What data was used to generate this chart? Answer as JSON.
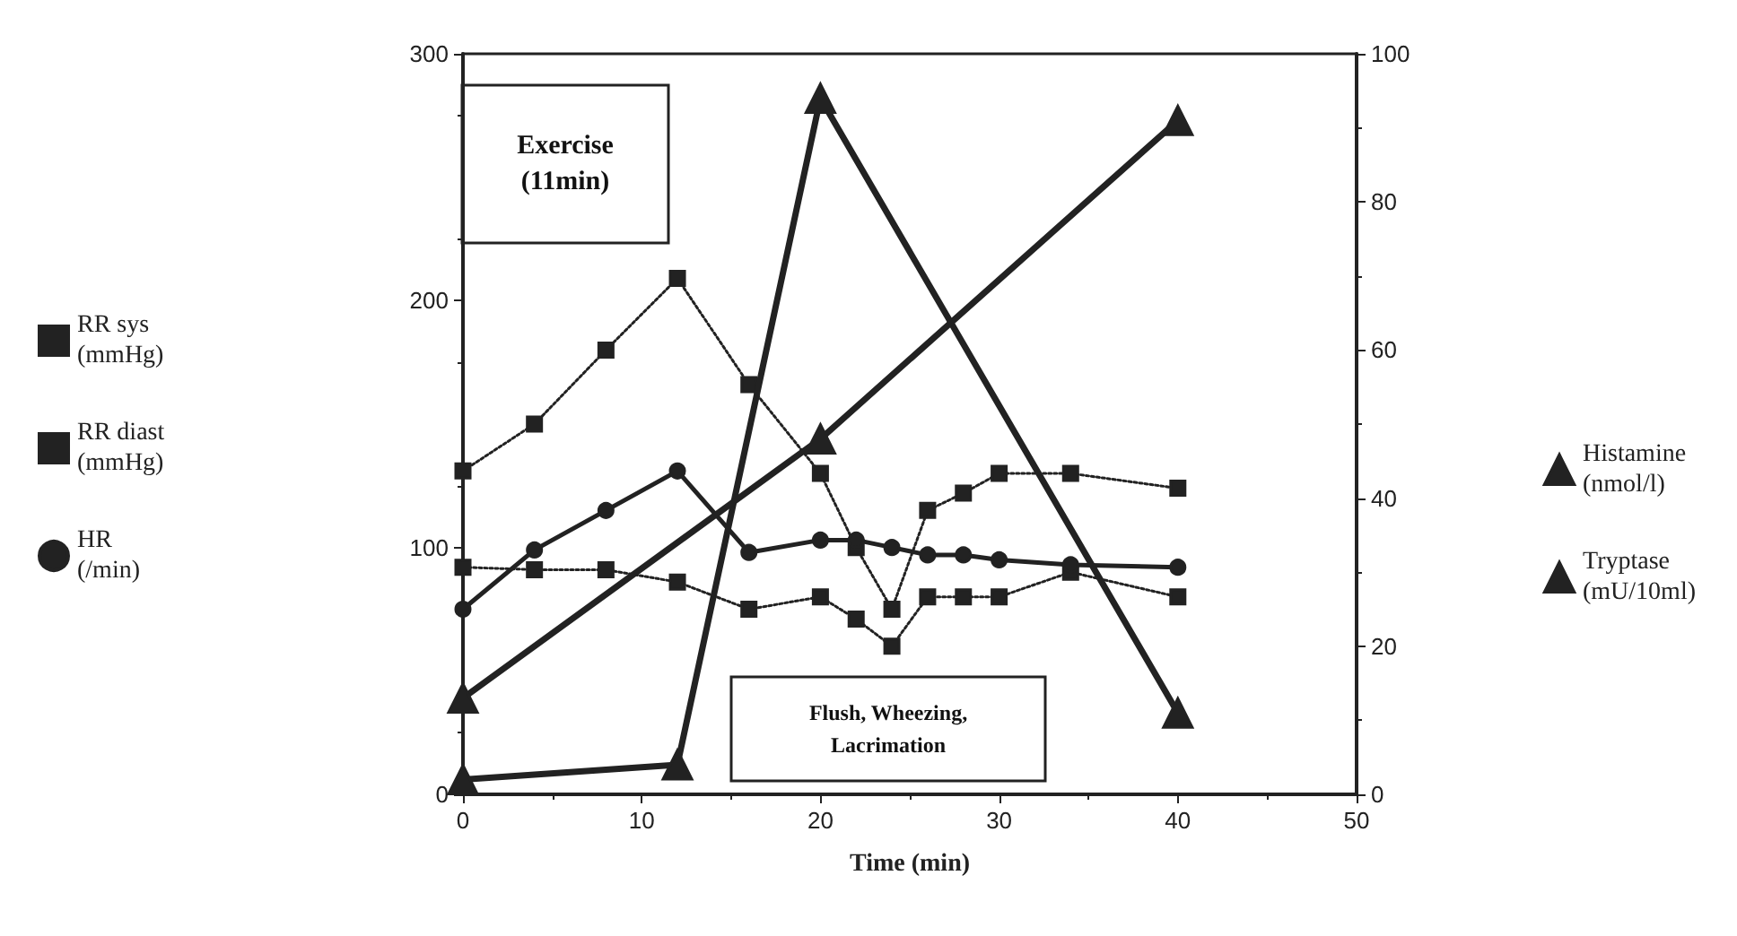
{
  "chart_data": {
    "type": "line",
    "xlabel": "Time (min)",
    "xlim": [
      0,
      50
    ],
    "xticks": [
      0,
      10,
      20,
      30,
      40,
      50
    ],
    "ylim": [
      0,
      300
    ],
    "yticks": [
      0,
      100,
      200,
      300
    ],
    "y2lim": [
      0,
      100
    ],
    "y2ticks": [
      0,
      20,
      40,
      60,
      80,
      100
    ],
    "legend": "left",
    "grid": false,
    "annotations": [
      "Exercise\n(11min)",
      "Flush, Wheezing,\nLacrimation"
    ],
    "series": [
      {
        "name": "RR sys\n(mmHg)",
        "color": "#222222",
        "marker": "square",
        "line_style": "dotted",
        "x": [
          0,
          4,
          8,
          12,
          16,
          20,
          22,
          24,
          26,
          28,
          30,
          34,
          40
        ],
        "values": [
          131,
          150,
          180,
          209,
          166,
          130,
          100,
          75,
          115,
          122,
          130,
          130,
          124
        ]
      },
      {
        "name": "RR diast\n(mmHg)",
        "color": "#222222",
        "marker": "square",
        "line_style": "dotted",
        "x": [
          0,
          4,
          8,
          12,
          16,
          20,
          22,
          24,
          26,
          28,
          30,
          34,
          40
        ],
        "values": [
          92,
          91,
          91,
          86,
          75,
          80,
          71,
          60,
          80,
          80,
          80,
          90,
          80
        ]
      },
      {
        "name": "HR\n(/min)",
        "color": "#222222",
        "marker": "circle",
        "line_style": "solid",
        "x": [
          0,
          4,
          8,
          12,
          16,
          20,
          22,
          24,
          26,
          28,
          30,
          34,
          40
        ],
        "values": [
          75,
          99,
          115,
          131,
          98,
          103,
          103,
          100,
          97,
          97,
          95,
          93,
          92
        ]
      },
      {
        "name": "Histamine\n(nmol/l)",
        "color": "#222222",
        "marker": "triangle",
        "line_style": "solid",
        "axis": "y2",
        "x": [
          0,
          12,
          20,
          40
        ],
        "values": [
          2,
          4,
          94,
          11
        ]
      },
      {
        "name": "Tryptase\n(mU/10ml)",
        "color": "#222222",
        "marker": "triangle",
        "line_style": "solid",
        "axis": "y2",
        "x": [
          0,
          20,
          40
        ],
        "values": [
          13,
          48,
          91
        ]
      }
    ]
  }
}
